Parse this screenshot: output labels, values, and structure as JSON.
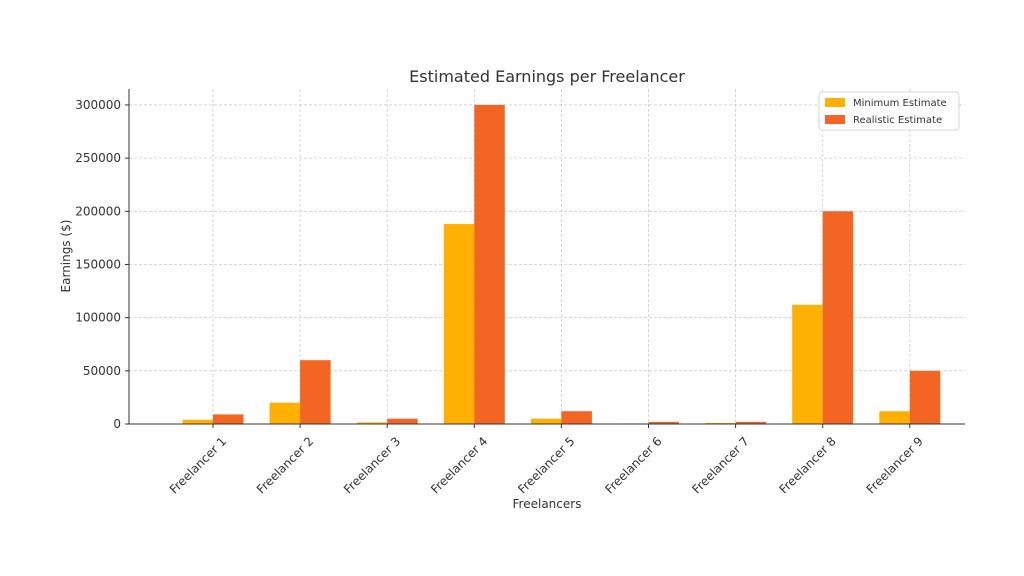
{
  "chart_data": {
    "type": "bar",
    "title": "Estimated Earnings per Freelancer",
    "xlabel": "Freelancers",
    "ylabel": "Earnings ($)",
    "categories": [
      "Freelancer 1",
      "Freelancer 2",
      "Freelancer 3",
      "Freelancer 4",
      "Freelancer 5",
      "Freelancer 6",
      "Freelancer 7",
      "Freelancer 8",
      "Freelancer 9"
    ],
    "series": [
      {
        "name": "Minimum Estimate",
        "color": "#FFB000",
        "values": [
          4000,
          20000,
          1500,
          188000,
          5000,
          500,
          1000,
          112000,
          12000
        ]
      },
      {
        "name": "Realistic Estimate",
        "color": "#F26522",
        "values": [
          9000,
          60000,
          5000,
          300000,
          12000,
          2000,
          2000,
          200000,
          50000
        ]
      }
    ],
    "ylim": [
      0,
      315000
    ],
    "yticks": [
      0,
      50000,
      100000,
      150000,
      200000,
      250000,
      300000
    ],
    "grid": true,
    "legend_position": "top-right"
  }
}
